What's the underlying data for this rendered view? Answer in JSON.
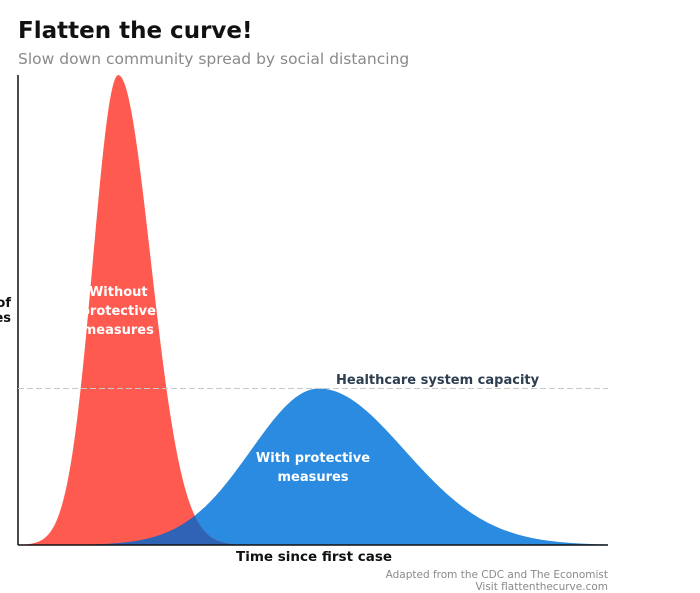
{
  "header": {
    "title": "Flatten the curve!",
    "subtitle": "Slow down community spread by social distancing"
  },
  "footer": {
    "credit_line1": "Adapted from the CDC and The Economist",
    "credit_line2": "Visit flattenthecurve.com"
  },
  "chart_data": {
    "type": "area",
    "title": "Flatten the curve!",
    "subtitle": "Slow down community spread by social distancing",
    "xlabel": "Time since first case",
    "ylabel": "of\nes",
    "x_tick_labels": [],
    "y_tick_labels": [],
    "xlim": [
      0,
      100
    ],
    "ylim": [
      0,
      100
    ],
    "grid": false,
    "legend": "none",
    "series": [
      {
        "name": "Without protective measures",
        "label_lines": [
          "Without",
          "protective",
          "measures"
        ],
        "color": "#ff5a4f",
        "distribution": {
          "peak_x": 17,
          "peak_y": 100,
          "spread_left": 4.3,
          "spread_right": 5.5
        }
      },
      {
        "name": "With protective measures",
        "label_lines": [
          "With protective",
          "measures"
        ],
        "color": "#2a8be0",
        "distribution": {
          "peak_x": 51,
          "peak_y": 33.3,
          "spread_left": 11.5,
          "spread_right": 14.5
        }
      }
    ],
    "overlap_color": "#2e63b6",
    "reference_lines": [
      {
        "orientation": "horizontal",
        "y": 33.3,
        "label": "Healthcare system capacity",
        "style": "dashed",
        "color": "#c8c8c8"
      }
    ]
  }
}
